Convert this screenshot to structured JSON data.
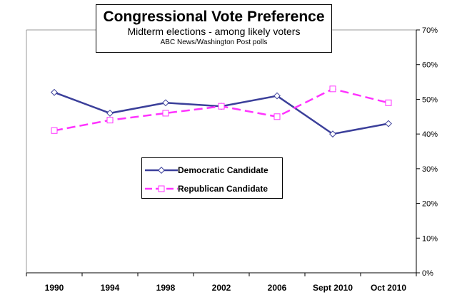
{
  "chart_data": {
    "type": "line",
    "title": "Congressional Vote Preference",
    "subtitle": "Midterm elections - among likely voters",
    "source": "ABC News/Washington Post polls",
    "categories": [
      "1990",
      "1994",
      "1998",
      "2002",
      "2006",
      "Sept 2010",
      "Oct 2010"
    ],
    "series": [
      {
        "name": "Democratic Candidate",
        "values": [
          52,
          46,
          49,
          48,
          51,
          40,
          43
        ],
        "color": "#3b3f9a",
        "line_style": "solid",
        "marker": "diamond"
      },
      {
        "name": "Republican Candidate",
        "values": [
          41,
          44,
          46,
          48,
          45,
          53,
          49
        ],
        "color": "#ff33ff",
        "line_style": "dashed",
        "marker": "square"
      }
    ],
    "y_axis": {
      "position": "right",
      "min": 0,
      "max": 70,
      "step": 10,
      "tick_labels": [
        "0%",
        "10%",
        "20%",
        "30%",
        "40%",
        "50%",
        "60%",
        "70%"
      ]
    },
    "grid": false,
    "legend_position": "center-left"
  }
}
